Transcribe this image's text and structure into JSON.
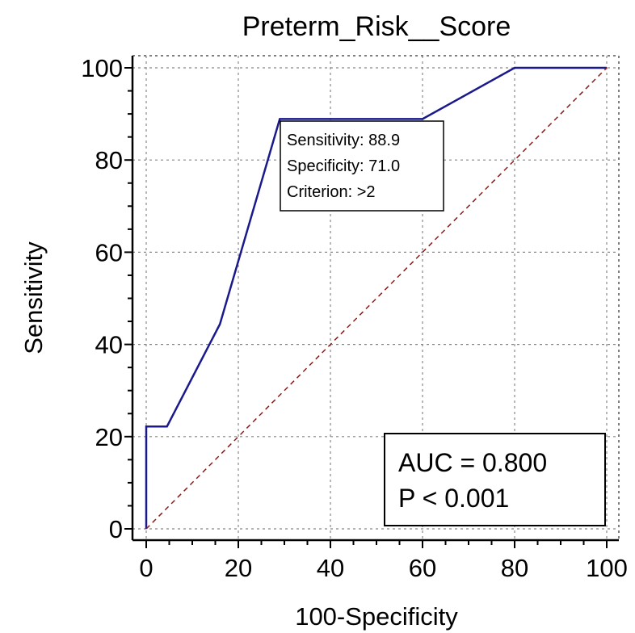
{
  "chart_data": {
    "type": "line",
    "title": "Preterm_Risk__Score",
    "xlabel": "100-Specificity",
    "ylabel": "Sensitivity",
    "xlim": [
      0,
      100
    ],
    "ylim": [
      0,
      100
    ],
    "x_ticks": [
      "0",
      "20",
      "40",
      "60",
      "80",
      "100"
    ],
    "y_ticks": [
      "0",
      "20",
      "40",
      "60",
      "80",
      "100"
    ],
    "grid": true,
    "series": [
      {
        "color": "#1a1a8c",
        "style": "solid",
        "points": [
          [
            0,
            0
          ],
          [
            0,
            22.2
          ],
          [
            4.5,
            22.2
          ],
          [
            16,
            44.4
          ],
          [
            29,
            88.9
          ],
          [
            60,
            88.9
          ],
          [
            80,
            100
          ],
          [
            100,
            100
          ]
        ]
      },
      {
        "color": "#8b1a1a",
        "style": "dashed",
        "points": [
          [
            0,
            0
          ],
          [
            100,
            100
          ]
        ]
      }
    ],
    "optimal_point": {
      "x": 29,
      "y": 88.9,
      "lines": [
        "Sensitivity: 88.9",
        "Specificity: 71.0",
        "Criterion: >2"
      ]
    },
    "stats": {
      "auc": "AUC = 0.800",
      "p": "P < 0.001"
    }
  }
}
